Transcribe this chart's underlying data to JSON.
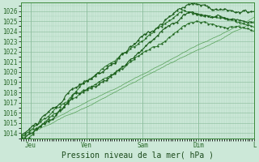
{
  "xlabel": "Pression niveau de la mer( hPa )",
  "bg_color": "#cce8d8",
  "plot_bg_color": "#cce8d8",
  "grid_color_major": "#88bb99",
  "grid_color_minor": "#aad4bb",
  "line_color_dark": "#1a5c1a",
  "line_color_medium": "#2d7a2d",
  "line_color_light": "#4a9a4a",
  "ylim": [
    1013.5,
    1026.8
  ],
  "xlim": [
    0,
    100
  ],
  "yticks": [
    1014,
    1015,
    1016,
    1017,
    1018,
    1019,
    1020,
    1021,
    1022,
    1023,
    1024,
    1025,
    1026
  ],
  "xtick_positions": [
    4,
    28,
    52,
    76,
    100
  ],
  "xtick_labels": [
    "Jeu",
    "Ven",
    "Sam",
    "Dim",
    "L"
  ],
  "vline_positions": [
    4,
    28,
    52,
    76,
    100
  ],
  "tick_fontsize": 5.5,
  "xlabel_fontsize": 7.0
}
